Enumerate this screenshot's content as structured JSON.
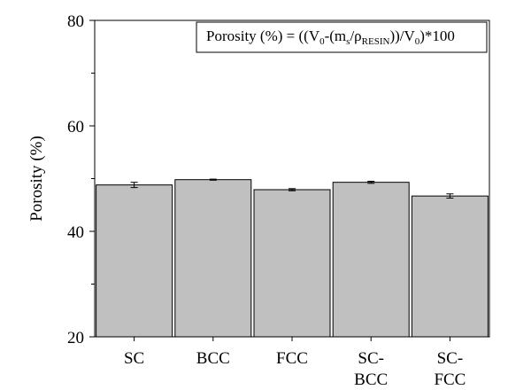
{
  "chart_data": {
    "type": "bar",
    "categories": [
      [
        "SC"
      ],
      [
        "BCC"
      ],
      [
        "FCC"
      ],
      [
        "SC-",
        "BCC"
      ],
      [
        "SC-",
        "FCC"
      ]
    ],
    "values": [
      48.8,
      49.8,
      47.9,
      49.3,
      46.7
    ],
    "errors": [
      0.5,
      0.1,
      0.2,
      0.2,
      0.4
    ],
    "ylabel": "Porosity (%)",
    "xlabel": "",
    "ylim": [
      20,
      80
    ],
    "y_ticks": [
      20,
      40,
      60,
      80
    ],
    "bar_color": "#c0c0c0",
    "grid": false,
    "annotation": {
      "parts": [
        {
          "t": "Porosity (%) = ((V"
        },
        {
          "t": "0",
          "sub": true
        },
        {
          "t": "-(m"
        },
        {
          "t": "s",
          "sub": true
        },
        {
          "t": "/ρ"
        },
        {
          "t": "RESIN",
          "sub": true
        },
        {
          "t": "))/V"
        },
        {
          "t": "0",
          "sub": true
        },
        {
          "t": ")*100"
        }
      ]
    }
  }
}
